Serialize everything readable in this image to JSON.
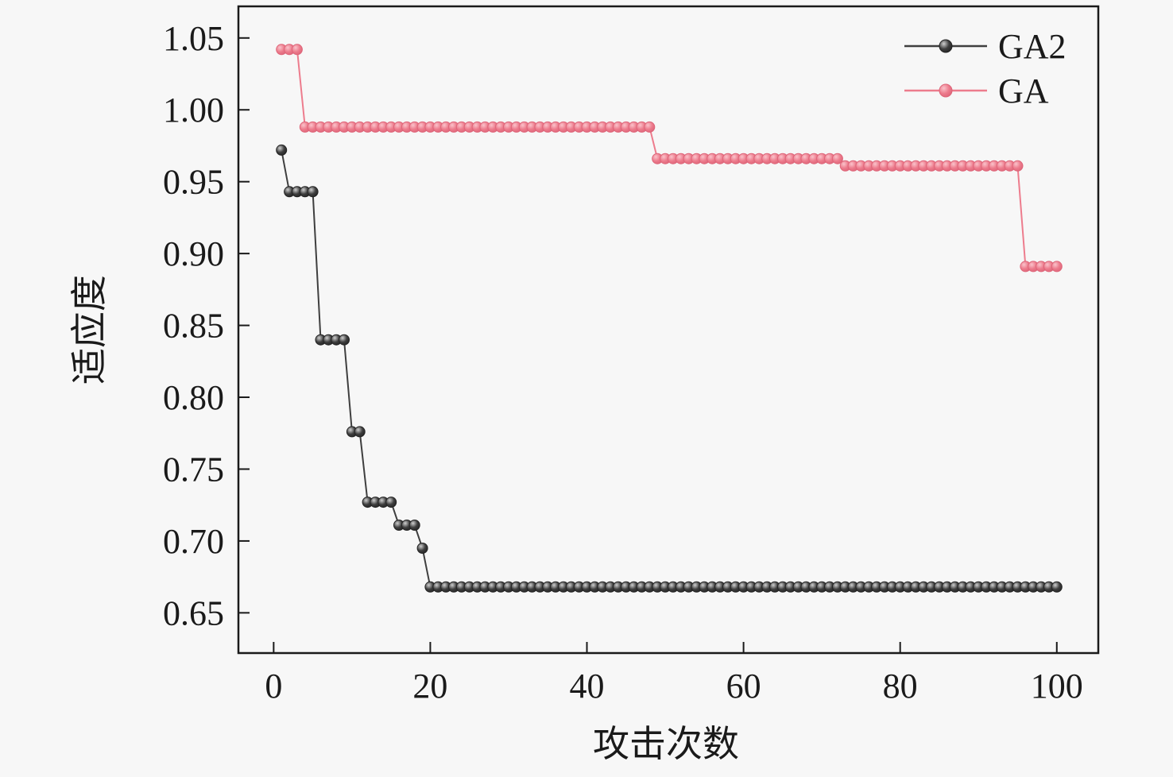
{
  "figure": {
    "background": "#f7f7f7",
    "axis_color": "#1a1a1a"
  },
  "chart_data": {
    "type": "line",
    "title": "",
    "xlabel": "攻击次数",
    "ylabel": "适应度",
    "grid": false,
    "legend_position": "top-right",
    "xlim": [
      -4.5,
      105.3
    ],
    "ylim": [
      0.622,
      1.072
    ],
    "x_ticks": [
      0,
      20,
      40,
      60,
      80,
      100
    ],
    "y_ticks": [
      0.65,
      0.7,
      0.75,
      0.8,
      0.85,
      0.9,
      0.95,
      1.0,
      1.05
    ],
    "series": [
      {
        "name": "GA2",
        "color": "#3f3f3f",
        "marker_edge": "#242424",
        "marker_center": "#cfcfcf",
        "segments": [
          {
            "from": 1,
            "to": 1,
            "value": 0.972
          },
          {
            "from": 2,
            "to": 5,
            "value": 0.943
          },
          {
            "from": 6,
            "to": 9,
            "value": 0.84
          },
          {
            "from": 10,
            "to": 11,
            "value": 0.776
          },
          {
            "from": 12,
            "to": 15,
            "value": 0.727
          },
          {
            "from": 16,
            "to": 18,
            "value": 0.711
          },
          {
            "from": 19,
            "to": 19,
            "value": 0.695
          },
          {
            "from": 20,
            "to": 100,
            "value": 0.668
          }
        ]
      },
      {
        "name": "GA",
        "color": "#ed7c8d",
        "marker_edge": "#de6579",
        "marker_center": "#fac3cb",
        "segments": [
          {
            "from": 1,
            "to": 3,
            "value": 1.042
          },
          {
            "from": 4,
            "to": 48,
            "value": 0.988
          },
          {
            "from": 49,
            "to": 72,
            "value": 0.966
          },
          {
            "from": 73,
            "to": 95,
            "value": 0.961
          },
          {
            "from": 96,
            "to": 100,
            "value": 0.891
          }
        ]
      }
    ]
  }
}
